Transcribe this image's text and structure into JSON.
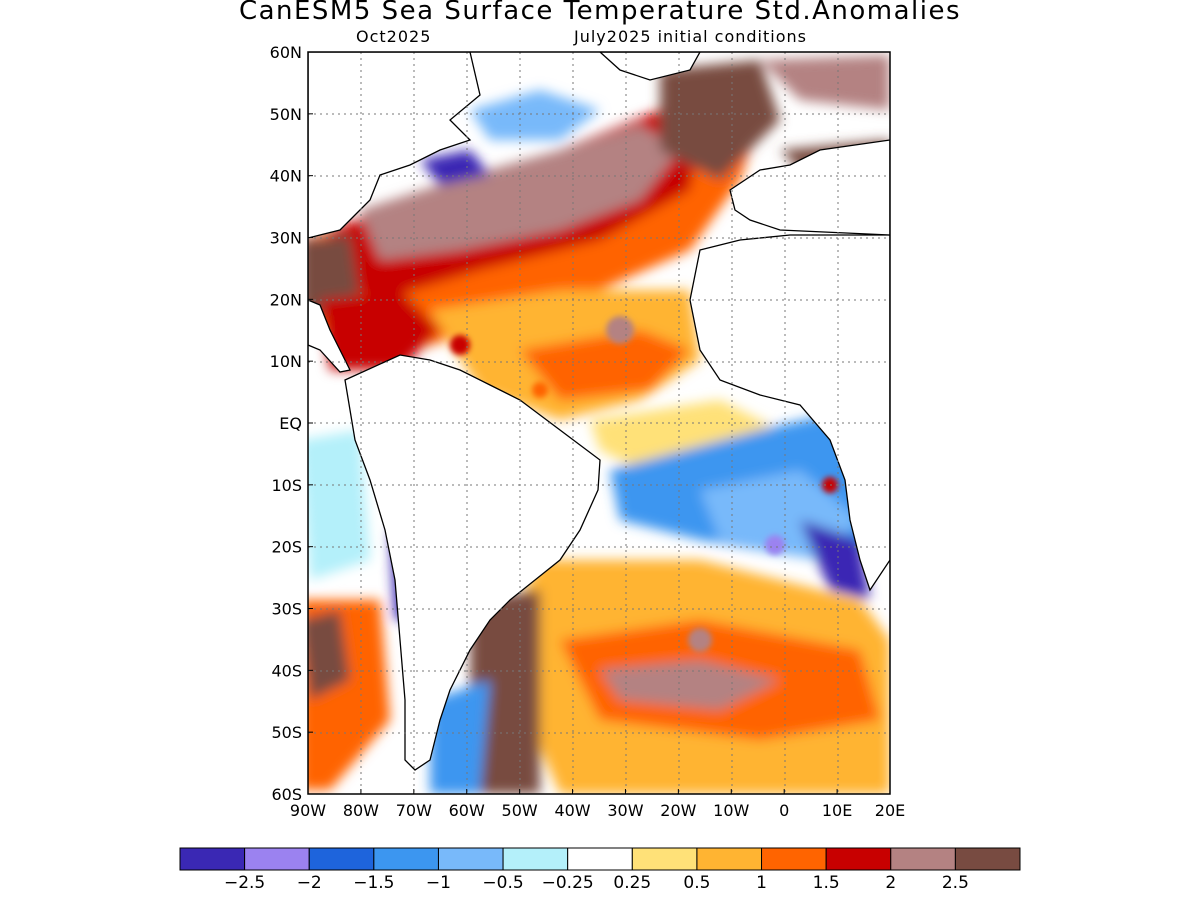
{
  "title": "CanESM5 Sea Surface Temperature Std.Anomalies",
  "subtitle_left": "Oct2025",
  "subtitle_right": "July2025 initial conditions",
  "map": {
    "lat_labels": [
      "60N",
      "50N",
      "40N",
      "30N",
      "20N",
      "10N",
      "EQ",
      "10S",
      "20S",
      "30S",
      "40S",
      "50S",
      "60S"
    ],
    "lon_labels": [
      "90W",
      "80W",
      "70W",
      "60W",
      "50W",
      "40W",
      "30W",
      "20W",
      "10W",
      "0",
      "10E",
      "20E"
    ],
    "lon_range": [
      -90,
      20
    ],
    "lat_range": [
      -60,
      60
    ],
    "grid": "dotted"
  },
  "colorbar": {
    "colors": [
      "#3a28b4",
      "#9b82f0",
      "#1e64dc",
      "#3c96f0",
      "#78b9fa",
      "#b4f0fa",
      "#ffffff",
      "#ffe178",
      "#ffb432",
      "#ff6400",
      "#c80000",
      "#b48282",
      "#784b41"
    ],
    "labels": [
      "−2.5",
      "−2",
      "−1.5",
      "−1",
      "−0.5",
      "−0.25",
      "0.25",
      "0.5",
      "1",
      "1.5",
      "2",
      "2.5"
    ]
  }
}
